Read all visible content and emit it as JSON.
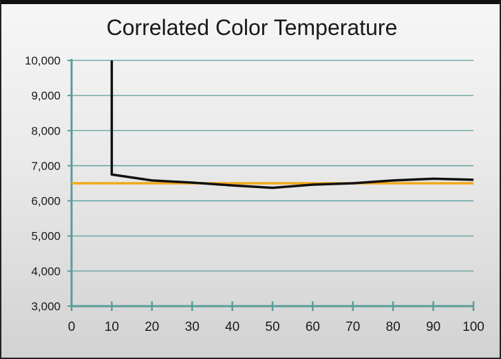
{
  "chart_data": {
    "type": "line",
    "title": "Correlated Color Temperature",
    "xlabel": "",
    "ylabel": "",
    "xlim": [
      0,
      100
    ],
    "ylim": [
      3000,
      10000
    ],
    "x_ticks": [
      0,
      10,
      20,
      30,
      40,
      50,
      60,
      70,
      80,
      90,
      100
    ],
    "x_tick_labels": [
      "0",
      "10",
      "20",
      "30",
      "40",
      "50",
      "60",
      "70",
      "80",
      "90",
      "100"
    ],
    "y_ticks": [
      3000,
      4000,
      5000,
      6000,
      7000,
      8000,
      9000,
      10000
    ],
    "y_tick_labels": [
      "3,000",
      "4,000",
      "5,000",
      "6,000",
      "7,000",
      "8,000",
      "9,000",
      "10,000"
    ],
    "grid": "horizontal",
    "legend": "none",
    "series": [
      {
        "x": [
          10,
          10,
          20,
          30,
          40,
          50,
          60,
          70,
          80,
          90,
          100
        ],
        "y": [
          10000,
          6750,
          6580,
          6520,
          6440,
          6370,
          6460,
          6500,
          6580,
          6630,
          6600
        ],
        "color": "#111111"
      },
      {
        "x": [
          0,
          100
        ],
        "y": [
          6500,
          6500
        ],
        "color": "#f2a81d"
      }
    ],
    "colors": {
      "axis": "#5b9c9a",
      "grid": "#5b9c9a",
      "background_top": "#f6f6f6",
      "background_bottom": "#d2d2d2"
    }
  }
}
